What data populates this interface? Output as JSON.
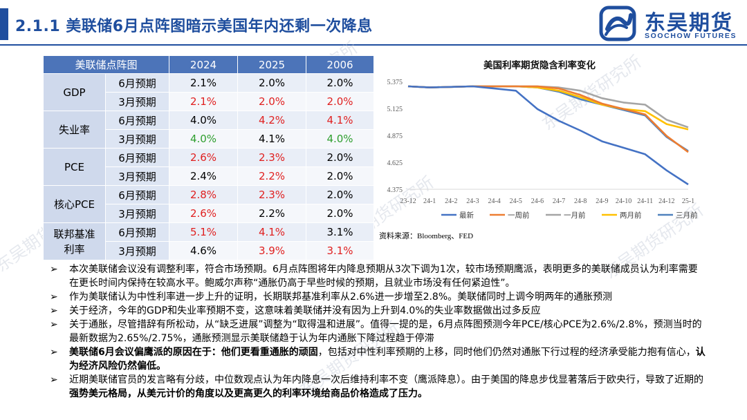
{
  "header": {
    "title": "2.1.1 美联储6月点阵图暗示美国年内还剩一次降息",
    "logo_cn": "东吴期货",
    "logo_en": "SOOCHOW FUTURES"
  },
  "watermark_text": "东吴期货研究所",
  "table": {
    "headers": [
      "美联储点阵图",
      "2024",
      "2025",
      "2006"
    ],
    "groups": [
      {
        "label": "GDP",
        "rows": [
          {
            "label": "6月预期",
            "cells": [
              {
                "v": "2.1%",
                "c": "#000000"
              },
              {
                "v": "2.0%",
                "c": "#000000"
              },
              {
                "v": "2.0%",
                "c": "#000000"
              }
            ]
          },
          {
            "label": "3月预期",
            "cells": [
              {
                "v": "2.1%",
                "c": "#e02020"
              },
              {
                "v": "2.0%",
                "c": "#e02020"
              },
              {
                "v": "2.0%",
                "c": "#e02020"
              }
            ]
          }
        ]
      },
      {
        "label": "失业率",
        "rows": [
          {
            "label": "6月预期",
            "cells": [
              {
                "v": "4.0%",
                "c": "#000000"
              },
              {
                "v": "4.2%",
                "c": "#e02020"
              },
              {
                "v": "4.1%",
                "c": "#e02020"
              }
            ]
          },
          {
            "label": "3月预期",
            "cells": [
              {
                "v": "4.0%",
                "c": "#2e9e2e"
              },
              {
                "v": "4.1%",
                "c": "#000000"
              },
              {
                "v": "4.0%",
                "c": "#2e9e2e"
              }
            ]
          }
        ]
      },
      {
        "label": "PCE",
        "rows": [
          {
            "label": "6月预期",
            "cells": [
              {
                "v": "2.6%",
                "c": "#e02020"
              },
              {
                "v": "2.3%",
                "c": "#e02020"
              },
              {
                "v": "2.0%",
                "c": "#000000"
              }
            ]
          },
          {
            "label": "3月预期",
            "cells": [
              {
                "v": "2.4%",
                "c": "#000000"
              },
              {
                "v": "2.2%",
                "c": "#e02020"
              },
              {
                "v": "2.0%",
                "c": "#000000"
              }
            ]
          }
        ]
      },
      {
        "label": "核心PCE",
        "rows": [
          {
            "label": "6月预期",
            "cells": [
              {
                "v": "2.8%",
                "c": "#e02020"
              },
              {
                "v": "2.3%",
                "c": "#e02020"
              },
              {
                "v": "2.0%",
                "c": "#000000"
              }
            ]
          },
          {
            "label": "3月预期",
            "cells": [
              {
                "v": "2.6%",
                "c": "#e02020"
              },
              {
                "v": "2.2%",
                "c": "#000000"
              },
              {
                "v": "2.0%",
                "c": "#000000"
              }
            ]
          }
        ]
      },
      {
        "label": "联邦基准利率",
        "rows": [
          {
            "label": "6月预期",
            "cells": [
              {
                "v": "5.1%",
                "c": "#e02020"
              },
              {
                "v": "4.1%",
                "c": "#e02020"
              },
              {
                "v": "3.1%",
                "c": "#000000"
              }
            ]
          },
          {
            "label": "3月预期",
            "cells": [
              {
                "v": "4.6%",
                "c": "#000000"
              },
              {
                "v": "3.9%",
                "c": "#e02020"
              },
              {
                "v": "3.1%",
                "c": "#e02020"
              }
            ]
          }
        ]
      }
    ]
  },
  "chart_data": {
    "type": "line",
    "title": "美国利率期货隐含利率变化",
    "categories": [
      "23-12",
      "24-1",
      "24-2",
      "24-3",
      "24-4",
      "24-5",
      "24-6",
      "24-7",
      "24-8",
      "24-9",
      "24-10",
      "24-11",
      "24-12",
      "25-1"
    ],
    "ylim": [
      4.375,
      5.375
    ],
    "yticks": [
      "5.375",
      "5.125",
      "4.875",
      "4.625",
      "4.375"
    ],
    "grid": false,
    "legend_position": "bottom",
    "series": [
      {
        "name": "最新",
        "color": "#4472c4",
        "values": [
          5.33,
          5.32,
          5.325,
          5.33,
          5.31,
          5.29,
          5.12,
          5.01,
          4.92,
          4.82,
          4.76,
          4.7,
          4.55,
          4.42
        ]
      },
      {
        "name": "一周前",
        "color": "#ed7d31",
        "values": [
          5.33,
          5.32,
          5.325,
          5.33,
          5.33,
          5.33,
          5.33,
          5.31,
          5.25,
          5.17,
          5.12,
          5.07,
          4.87,
          4.72
        ]
      },
      {
        "name": "一月前",
        "color": "#a5a5a5",
        "values": [
          5.33,
          5.32,
          5.325,
          5.33,
          5.33,
          5.33,
          5.33,
          5.32,
          5.29,
          5.22,
          5.18,
          5.16,
          5.02,
          4.95
        ]
      },
      {
        "name": "两月前",
        "color": "#ffc000",
        "values": [
          5.33,
          5.32,
          5.325,
          5.33,
          5.33,
          5.33,
          5.32,
          5.29,
          5.23,
          5.16,
          5.12,
          5.1,
          4.98,
          4.93
        ]
      },
      {
        "name": "三月前",
        "color": "#4f81bd",
        "values": [
          5.33,
          5.32,
          5.325,
          5.33,
          5.33,
          5.33,
          5.32,
          5.28,
          5.21,
          5.16,
          5.11,
          5.06,
          4.86,
          4.73
        ]
      }
    ],
    "source": "资料来源：Bloomberg、FED"
  },
  "notes": [
    [
      {
        "t": "本次美联储会议没有调整利率，符合市场预期。6月点阵图将年内降息预期从3次下调为1次，较市场预期鹰派，表明更多的美联储成员认为利率需要在更长时间内保持在较高水平。鲍威尔声称“通胀仍高于早些时候的预期，且就业市场没有任何紧迫性”。",
        "b": false
      }
    ],
    [
      {
        "t": "作为美联储认为中性利率进一步上升的证明，长期联邦基准利率从2.6%进一步增至2.8%。美联储同时上调今明两年的通胀预测",
        "b": false
      }
    ],
    [
      {
        "t": "关于经济，今年的GDP和失业率预期不变，这意味着美联储并没有因为上升到4.0%的失业率数据做出过多反应",
        "b": false
      }
    ],
    [
      {
        "t": "关于通胀，尽管措辞有所松动，从“缺乏进展”调整为“取得温和进展”。值得一提的是，6月点阵图预测今年PCE/核心PCE为2.6%/2.8%，预测当时的最新数据为2.65%/2.75%，通胀预测显示美联储趋于认为年内通胀下降过程趋于停滞",
        "b": false
      }
    ],
    [
      {
        "t": "美联储6月会议偏鹰派的原因在于：他们更看重通胀的顽固",
        "b": true
      },
      {
        "t": "，包括对中性利率预期的上移，同时他们仍然对通胀下行过程的经济承受能力抱有信心，",
        "b": false
      },
      {
        "t": "认为经济风险仍然偏低。",
        "b": true
      }
    ],
    [
      {
        "t": "近期美联储官员的发言略有分歧，中位数观点认为年内降息一次后维持利率不变（鹰派降息）。由于美国的降息步伐显著落后于欧央行，导致了近期的",
        "b": false
      },
      {
        "t": "强势美元格局，从美元计价的角度以及更高更久的利率环境给商品价格造成了压力。",
        "b": true
      }
    ]
  ]
}
